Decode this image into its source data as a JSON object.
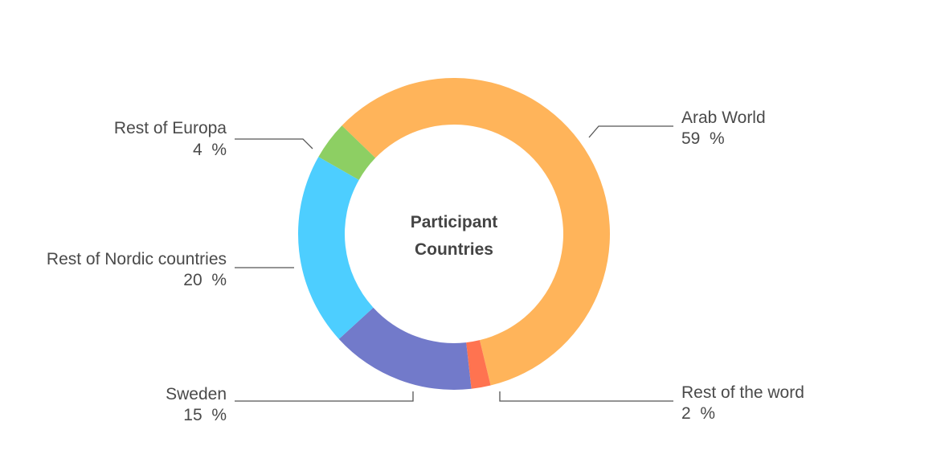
{
  "chart_data": {
    "type": "pie",
    "title": "Participant Countries",
    "title_lines": [
      "Participant",
      "Countries"
    ],
    "series": [
      {
        "name": "Arab World",
        "value": 59,
        "label": "59  %",
        "color": "#FFB45A"
      },
      {
        "name": "Rest of the word",
        "value": 2,
        "label": "2  %",
        "color": "#FF7350"
      },
      {
        "name": "Sweden",
        "value": 15,
        "label": "15  %",
        "color": "#727ACA"
      },
      {
        "name": "Rest of Nordic countries",
        "value": 20,
        "label": "20  %",
        "color": "#4DCEFF"
      },
      {
        "name": "Rest of Europa",
        "value": 4,
        "label": "4  %",
        "color": "#8DCF63"
      }
    ]
  }
}
